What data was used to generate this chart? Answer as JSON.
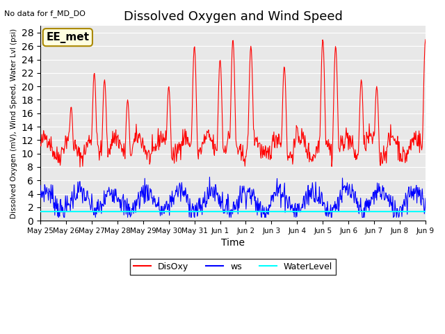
{
  "title": "Dissolved Oxygen and Wind Speed",
  "top_left_text": "No data for f_MD_DO",
  "xlabel": "Time",
  "ylabel": "Dissolved Oxygen (mV), Wind Speed, Water Lvl (psi)",
  "ylim": [
    0,
    29
  ],
  "yticks": [
    0,
    2,
    4,
    6,
    8,
    10,
    12,
    14,
    16,
    18,
    20,
    22,
    24,
    26,
    28
  ],
  "bg_color": "#e8e8e8",
  "annotation_box": {
    "text": "EE_met",
    "facecolor": "lightyellow",
    "edgecolor": "#aa8800",
    "fontsize": 11
  },
  "x_tick_positions": [
    0,
    1,
    2,
    3,
    4,
    5,
    6,
    7,
    8,
    9,
    10,
    11,
    12,
    13,
    14,
    15
  ],
  "x_tick_labels": [
    "May 25",
    "May 26",
    "May 27",
    "May 28",
    "May 29",
    "May 30",
    "May 31",
    "Jun 1",
    "Jun 2",
    "Jun 3",
    "Jun 4",
    "Jun 5",
    "Jun 6",
    "Jun 7",
    "Jun 8",
    "Jun 9"
  ],
  "water_level": 1.4,
  "disoxy_seed": 42,
  "ws_seed": 7,
  "spike_times": [
    1.2,
    2.1,
    2.5,
    3.4,
    5.0,
    6.0,
    7.0,
    7.5,
    8.2,
    9.5,
    10.0,
    11.0,
    11.5,
    12.5,
    13.1,
    15.0
  ],
  "spike_heights": [
    17,
    22,
    21,
    18,
    20,
    26,
    24,
    27,
    26,
    23,
    14,
    27,
    26,
    21,
    20,
    27
  ]
}
